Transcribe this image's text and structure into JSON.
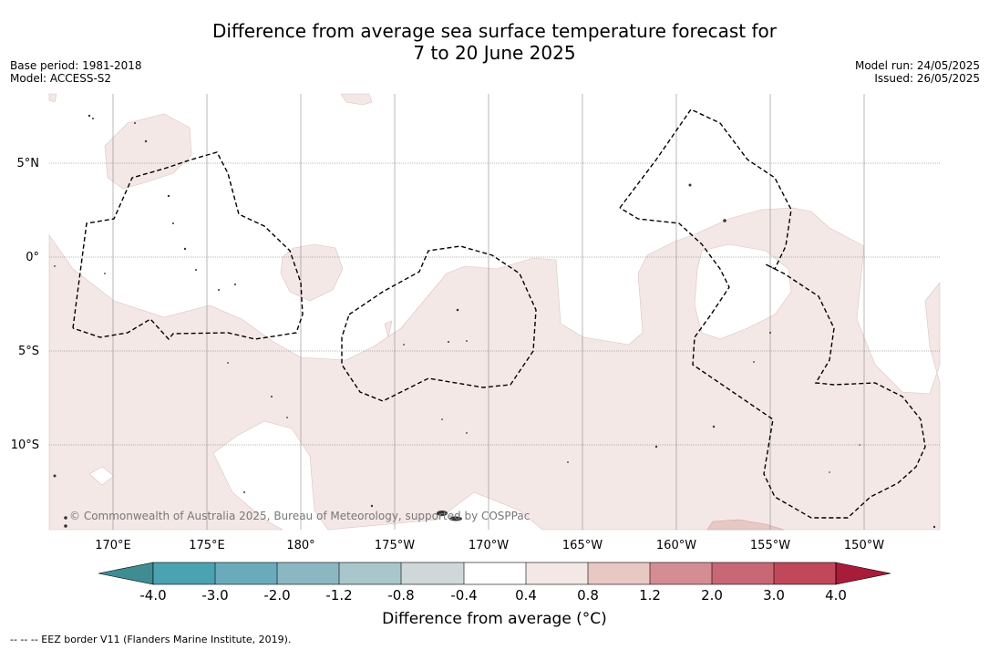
{
  "title": {
    "line1": "Difference from average sea surface temperature forecast for",
    "line2": "7 to 20 June 2025"
  },
  "meta_left": {
    "base_period": "Base period: 1981-2018",
    "model": "Model: ACCESS-S2"
  },
  "meta_right": {
    "model_run": "Model run: 24/05/2025",
    "issued": "Issued: 26/05/2025"
  },
  "map": {
    "lat_labels": [
      "5°N",
      "0°",
      "5°S",
      "10°S"
    ],
    "lon_labels": [
      "170°E",
      "175°E",
      "180°",
      "175°W",
      "170°W",
      "165°W",
      "160°W",
      "155°W",
      "150°W"
    ],
    "copyright": "© Commonwealth of Australia 2025, Bureau of Meteorology, supported by COSPPac",
    "colors": {
      "anomaly_0_4_to_0_8": "#f4e8e7",
      "anomaly_0_8_to_1_2": "#e8c8c3",
      "land": "#555555",
      "eez_line": "#000000",
      "grid": "#666666"
    }
  },
  "colorbar": {
    "tick_labels": [
      "-4.0",
      "-3.0",
      "-2.0",
      "-1.2",
      "-0.8",
      "-0.4",
      "0.4",
      "0.8",
      "1.2",
      "2.0",
      "3.0",
      "4.0"
    ],
    "colors": [
      "#3f8d93",
      "#4ba2b1",
      "#6aabbb",
      "#8ab7c2",
      "#a9c6cb",
      "#cfd7d8",
      "#ffffff",
      "#f4e8e7",
      "#e8c8c3",
      "#d48e93",
      "#c86874",
      "#c0485a",
      "#a81c3a"
    ],
    "title": "Difference from average (°C)"
  },
  "footer": {
    "legend_text": "-- -- -- EEZ border V11 (Flanders Marine Institute, 2019)."
  }
}
